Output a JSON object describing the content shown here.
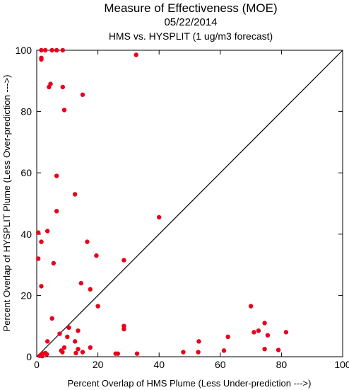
{
  "chart_data": {
    "type": "scatter",
    "title": "Measure of Effectiveness (MOE)",
    "date": "05/22/2014",
    "subtitle": "HMS vs. HYSPLIT  (1 ug/m3 forecast)",
    "xlabel": "Percent Overlap of HMS Plume (Less Under-prediction --->)",
    "ylabel": "Percent Overlap of HYSPLIT Plume (Less Over-prediction --->)",
    "xlim": [
      0,
      100
    ],
    "ylim": [
      0,
      100
    ],
    "xticks": [
      "0",
      "20",
      "40",
      "60",
      "80",
      "100"
    ],
    "yticks": [
      "0",
      "20",
      "40",
      "60",
      "80",
      "100"
    ],
    "reference_line": "y = x",
    "grid": false,
    "marker_color": "#e8001c",
    "points": [
      {
        "x": 1.0,
        "y": 0.3
      },
      {
        "x": 1.5,
        "y": 0.7
      },
      {
        "x": 2.0,
        "y": 1.0
      },
      {
        "x": 2.8,
        "y": 1.2
      },
      {
        "x": 3.3,
        "y": 0.8
      },
      {
        "x": 1.8,
        "y": 0.2
      },
      {
        "x": 8.4,
        "y": 1.5
      },
      {
        "x": 12.8,
        "y": 1.2
      },
      {
        "x": 15.0,
        "y": 1.5
      },
      {
        "x": 25.8,
        "y": 1.0
      },
      {
        "x": 26.5,
        "y": 1.0
      },
      {
        "x": 32.8,
        "y": 1.0
      },
      {
        "x": 47.9,
        "y": 1.5
      },
      {
        "x": 52.8,
        "y": 1.5
      },
      {
        "x": 61.2,
        "y": 2.0
      },
      {
        "x": 74.5,
        "y": 2.5
      },
      {
        "x": 79.0,
        "y": 2.2
      },
      {
        "x": 8.0,
        "y": 2.0
      },
      {
        "x": 9.0,
        "y": 3.0
      },
      {
        "x": 13.5,
        "y": 2.5
      },
      {
        "x": 17.5,
        "y": 3.0
      },
      {
        "x": 3.5,
        "y": 5.0
      },
      {
        "x": 12.5,
        "y": 5.0
      },
      {
        "x": 7.5,
        "y": 7.5
      },
      {
        "x": 10.0,
        "y": 6.5
      },
      {
        "x": 13.5,
        "y": 8.5
      },
      {
        "x": 10.5,
        "y": 9.5
      },
      {
        "x": 28.5,
        "y": 9.0
      },
      {
        "x": 28.5,
        "y": 10.0
      },
      {
        "x": 53.0,
        "y": 5.0
      },
      {
        "x": 62.5,
        "y": 6.5
      },
      {
        "x": 71.0,
        "y": 8.0
      },
      {
        "x": 72.5,
        "y": 8.5
      },
      {
        "x": 75.5,
        "y": 7.0
      },
      {
        "x": 81.5,
        "y": 8.0
      },
      {
        "x": 74.5,
        "y": 11.0
      },
      {
        "x": 70.0,
        "y": 16.5
      },
      {
        "x": 5.0,
        "y": 12.5
      },
      {
        "x": 20.0,
        "y": 16.5
      },
      {
        "x": 17.5,
        "y": 22.0
      },
      {
        "x": 14.5,
        "y": 24.0
      },
      {
        "x": 1.5,
        "y": 23.0
      },
      {
        "x": 0.5,
        "y": 32.0
      },
      {
        "x": 5.5,
        "y": 30.5
      },
      {
        "x": 28.5,
        "y": 31.5
      },
      {
        "x": 19.5,
        "y": 33.0
      },
      {
        "x": 16.5,
        "y": 37.5
      },
      {
        "x": 1.5,
        "y": 37.5
      },
      {
        "x": 0.5,
        "y": 40.5
      },
      {
        "x": 3.5,
        "y": 41.0
      },
      {
        "x": 40.0,
        "y": 45.5
      },
      {
        "x": 6.5,
        "y": 47.5
      },
      {
        "x": 12.5,
        "y": 53.0
      },
      {
        "x": 6.5,
        "y": 59.0
      },
      {
        "x": 9.0,
        "y": 80.5
      },
      {
        "x": 15.0,
        "y": 85.5
      },
      {
        "x": 4.0,
        "y": 88.0
      },
      {
        "x": 4.5,
        "y": 89.0
      },
      {
        "x": 8.5,
        "y": 88.0
      },
      {
        "x": 1.5,
        "y": 97.0
      },
      {
        "x": 1.5,
        "y": 97.5
      },
      {
        "x": 32.5,
        "y": 98.5
      },
      {
        "x": 1.5,
        "y": 100
      },
      {
        "x": 2.8,
        "y": 100
      },
      {
        "x": 5.0,
        "y": 100
      },
      {
        "x": 6.5,
        "y": 100
      },
      {
        "x": 8.5,
        "y": 100
      }
    ]
  }
}
